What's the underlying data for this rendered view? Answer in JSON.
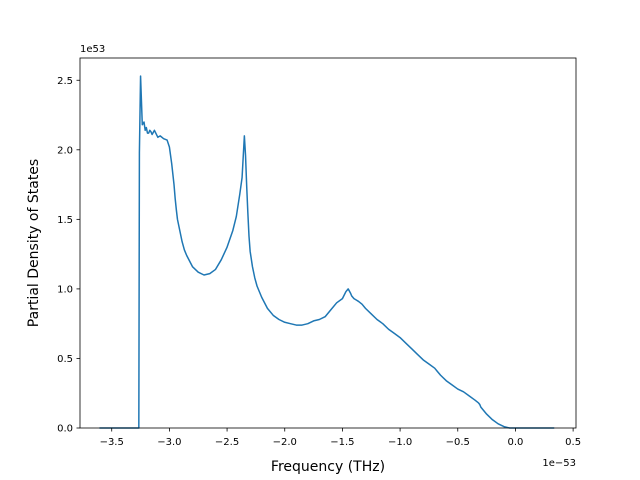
{
  "chart_data": {
    "type": "line",
    "xlabel": "Frequency (THz)",
    "ylabel": "Partial Density of States",
    "x_offset_text": "1e−53",
    "y_offset_text": "1e53",
    "x_scale_exponent": -53,
    "y_scale_exponent": 53,
    "xlim": [
      -3.775,
      0.525
    ],
    "ylim": [
      0,
      2.66
    ],
    "x_ticks": [
      -3.5,
      -3.0,
      -2.5,
      -2.0,
      -1.5,
      -1.0,
      -0.5,
      0.0,
      0.5
    ],
    "x_tick_labels": [
      "−3.5",
      "−3.0",
      "−2.5",
      "−2.0",
      "−1.5",
      "−1.0",
      "−0.5",
      "0.0",
      "0.5"
    ],
    "y_ticks": [
      0.0,
      0.5,
      1.0,
      1.5,
      2.0,
      2.5
    ],
    "y_tick_labels": [
      "0.0",
      "0.5",
      "1.0",
      "1.5",
      "2.0",
      "2.5"
    ],
    "grid": false,
    "legend": "none",
    "series": [
      {
        "color": "#1f77b4",
        "x": [
          -3.6,
          -3.45,
          -3.3,
          -3.265,
          -3.26,
          -3.25,
          -3.235,
          -3.22,
          -3.21,
          -3.2,
          -3.19,
          -3.18,
          -3.17,
          -3.16,
          -3.15,
          -3.13,
          -3.1,
          -3.08,
          -3.05,
          -3.02,
          -3.0,
          -2.98,
          -2.96,
          -2.95,
          -2.94,
          -2.93,
          -2.91,
          -2.89,
          -2.87,
          -2.85,
          -2.8,
          -2.75,
          -2.7,
          -2.65,
          -2.6,
          -2.55,
          -2.5,
          -2.45,
          -2.42,
          -2.39,
          -2.37,
          -2.35,
          -2.34,
          -2.33,
          -2.32,
          -2.31,
          -2.3,
          -2.28,
          -2.26,
          -2.24,
          -2.2,
          -2.15,
          -2.1,
          -2.05,
          -2.0,
          -1.95,
          -1.9,
          -1.85,
          -1.8,
          -1.75,
          -1.7,
          -1.65,
          -1.6,
          -1.55,
          -1.5,
          -1.47,
          -1.45,
          -1.43,
          -1.42,
          -1.41,
          -1.4,
          -1.38,
          -1.36,
          -1.33,
          -1.3,
          -1.25,
          -1.2,
          -1.15,
          -1.1,
          -1.05,
          -1.0,
          -0.95,
          -0.9,
          -0.85,
          -0.8,
          -0.75,
          -0.7,
          -0.68,
          -0.65,
          -0.6,
          -0.55,
          -0.5,
          -0.45,
          -0.4,
          -0.35,
          -0.32,
          -0.31,
          -0.3,
          -0.25,
          -0.2,
          -0.15,
          -0.1,
          -0.05,
          0.0,
          0.05,
          0.1,
          0.2,
          0.33
        ],
        "y": [
          0.0,
          0.0,
          0.0,
          0.0,
          1.98,
          2.53,
          2.18,
          2.2,
          2.14,
          2.16,
          2.12,
          2.12,
          2.14,
          2.13,
          2.11,
          2.14,
          2.09,
          2.1,
          2.08,
          2.07,
          2.02,
          1.9,
          1.75,
          1.65,
          1.57,
          1.5,
          1.42,
          1.34,
          1.28,
          1.24,
          1.16,
          1.12,
          1.1,
          1.11,
          1.14,
          1.21,
          1.3,
          1.42,
          1.52,
          1.68,
          1.8,
          2.1,
          1.96,
          1.74,
          1.55,
          1.38,
          1.27,
          1.16,
          1.08,
          1.02,
          0.94,
          0.86,
          0.81,
          0.78,
          0.76,
          0.75,
          0.74,
          0.74,
          0.75,
          0.77,
          0.78,
          0.8,
          0.85,
          0.9,
          0.93,
          0.98,
          1.0,
          0.97,
          0.95,
          0.94,
          0.93,
          0.92,
          0.91,
          0.89,
          0.86,
          0.82,
          0.78,
          0.75,
          0.71,
          0.68,
          0.65,
          0.61,
          0.57,
          0.53,
          0.49,
          0.46,
          0.43,
          0.41,
          0.38,
          0.34,
          0.31,
          0.28,
          0.26,
          0.23,
          0.2,
          0.18,
          0.17,
          0.15,
          0.1,
          0.06,
          0.03,
          0.01,
          0.0,
          0.0,
          0.0,
          0.0,
          0.0,
          0.0
        ]
      }
    ]
  }
}
